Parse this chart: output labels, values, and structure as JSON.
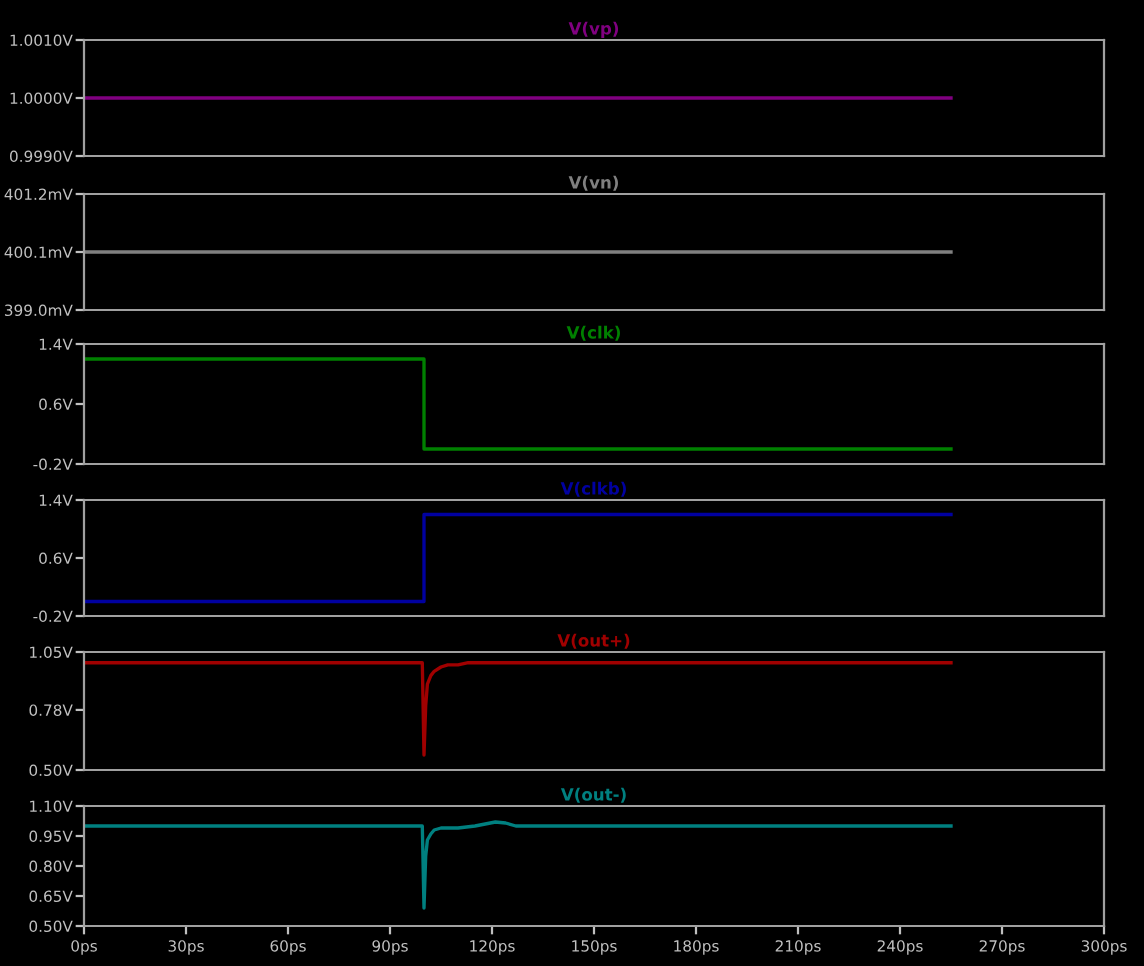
{
  "chart_data": [
    {
      "type": "line",
      "title": "V(vp)",
      "x": [
        0,
        255
      ],
      "series": [
        {
          "color": "#800080",
          "values": [
            1.0,
            1.0
          ]
        }
      ],
      "xlim": [
        0,
        300
      ],
      "ylim": [
        0.999,
        1.001
      ],
      "yticks": [
        {
          "value": 0.999,
          "label": "0.9990V"
        },
        {
          "value": 1.0,
          "label": "1.0000V"
        },
        {
          "value": 1.001,
          "label": "1.0010V"
        }
      ],
      "tick_labels": "y",
      "grid": false,
      "legend": false
    },
    {
      "type": "line",
      "title": "V(vn)",
      "x": [
        0,
        255
      ],
      "series": [
        {
          "color": "#808080",
          "values": [
            400.1,
            400.1
          ]
        }
      ],
      "xlim": [
        0,
        300
      ],
      "ylim": [
        399.0,
        401.2
      ],
      "yticks": [
        {
          "value": 399.0,
          "label": "399.0mV"
        },
        {
          "value": 400.1,
          "label": "400.1mV"
        },
        {
          "value": 401.2,
          "label": "401.2mV"
        }
      ],
      "tick_labels": "y",
      "grid": false,
      "legend": false
    },
    {
      "type": "line",
      "title": "V(clk)",
      "x": [
        0,
        100,
        100,
        255
      ],
      "series": [
        {
          "color": "#008000",
          "values": [
            1.2,
            1.2,
            0,
            0
          ]
        }
      ],
      "xlim": [
        0,
        300
      ],
      "ylim": [
        -0.2,
        1.4
      ],
      "yticks": [
        {
          "value": -0.2,
          "label": "-0.2V"
        },
        {
          "value": 0.6,
          "label": "0.6V"
        },
        {
          "value": 1.4,
          "label": "1.4V"
        }
      ],
      "tick_labels": "y",
      "grid": false,
      "legend": false
    },
    {
      "type": "line",
      "title": "V(clkb)",
      "x": [
        0,
        100,
        100,
        255
      ],
      "series": [
        {
          "color": "#0000a0",
          "values": [
            0,
            0,
            1.2,
            1.2
          ]
        }
      ],
      "xlim": [
        0,
        300
      ],
      "ylim": [
        -0.2,
        1.4
      ],
      "yticks": [
        {
          "value": -0.2,
          "label": "-0.2V"
        },
        {
          "value": 0.6,
          "label": "0.6V"
        },
        {
          "value": 1.4,
          "label": "1.4V"
        }
      ],
      "tick_labels": "y",
      "grid": false,
      "legend": false
    },
    {
      "type": "line",
      "title": "V(out+)",
      "x": [
        0,
        99.5,
        100,
        100.5,
        101,
        102,
        103,
        105,
        107,
        110,
        113,
        255
      ],
      "series": [
        {
          "color": "#a00000",
          "values": [
            1.0,
            1.0,
            0.57,
            0.8,
            0.9,
            0.94,
            0.96,
            0.98,
            0.99,
            0.99,
            1.0,
            1.0
          ]
        }
      ],
      "xlim": [
        0,
        300
      ],
      "ylim": [
        0.5,
        1.05
      ],
      "yticks": [
        {
          "value": 0.5,
          "label": "0.50V"
        },
        {
          "value": 0.78,
          "label": "0.78V"
        },
        {
          "value": 1.05,
          "label": "1.05V"
        }
      ],
      "tick_labels": "y",
      "grid": false,
      "legend": false
    },
    {
      "type": "line",
      "title": "V(out-)",
      "x": [
        0,
        99.5,
        100,
        100.5,
        101,
        102,
        103,
        105,
        110,
        115,
        118,
        121,
        124,
        127,
        255
      ],
      "series": [
        {
          "color": "#008080",
          "values": [
            1.0,
            1.0,
            0.59,
            0.85,
            0.93,
            0.96,
            0.98,
            0.99,
            0.99,
            1.0,
            1.01,
            1.02,
            1.015,
            1.0,
            1.0
          ]
        }
      ],
      "xlim": [
        0,
        300
      ],
      "xticks": [
        {
          "value": 0,
          "label": "0ps"
        },
        {
          "value": 30,
          "label": "30ps"
        },
        {
          "value": 60,
          "label": "60ps"
        },
        {
          "value": 90,
          "label": "90ps"
        },
        {
          "value": 120,
          "label": "120ps"
        },
        {
          "value": 150,
          "label": "150ps"
        },
        {
          "value": 180,
          "label": "180ps"
        },
        {
          "value": 210,
          "label": "210ps"
        },
        {
          "value": 240,
          "label": "240ps"
        },
        {
          "value": 270,
          "label": "270ps"
        },
        {
          "value": 300,
          "label": "300ps"
        }
      ],
      "ylim": [
        0.5,
        1.1
      ],
      "yticks": [
        {
          "value": 0.5,
          "label": "0.50V"
        },
        {
          "value": 0.65,
          "label": "0.65V"
        },
        {
          "value": 0.8,
          "label": "0.80V"
        },
        {
          "value": 0.95,
          "label": "0.95V"
        },
        {
          "value": 1.1,
          "label": "1.10V"
        }
      ],
      "grid": false,
      "legend": false
    }
  ]
}
